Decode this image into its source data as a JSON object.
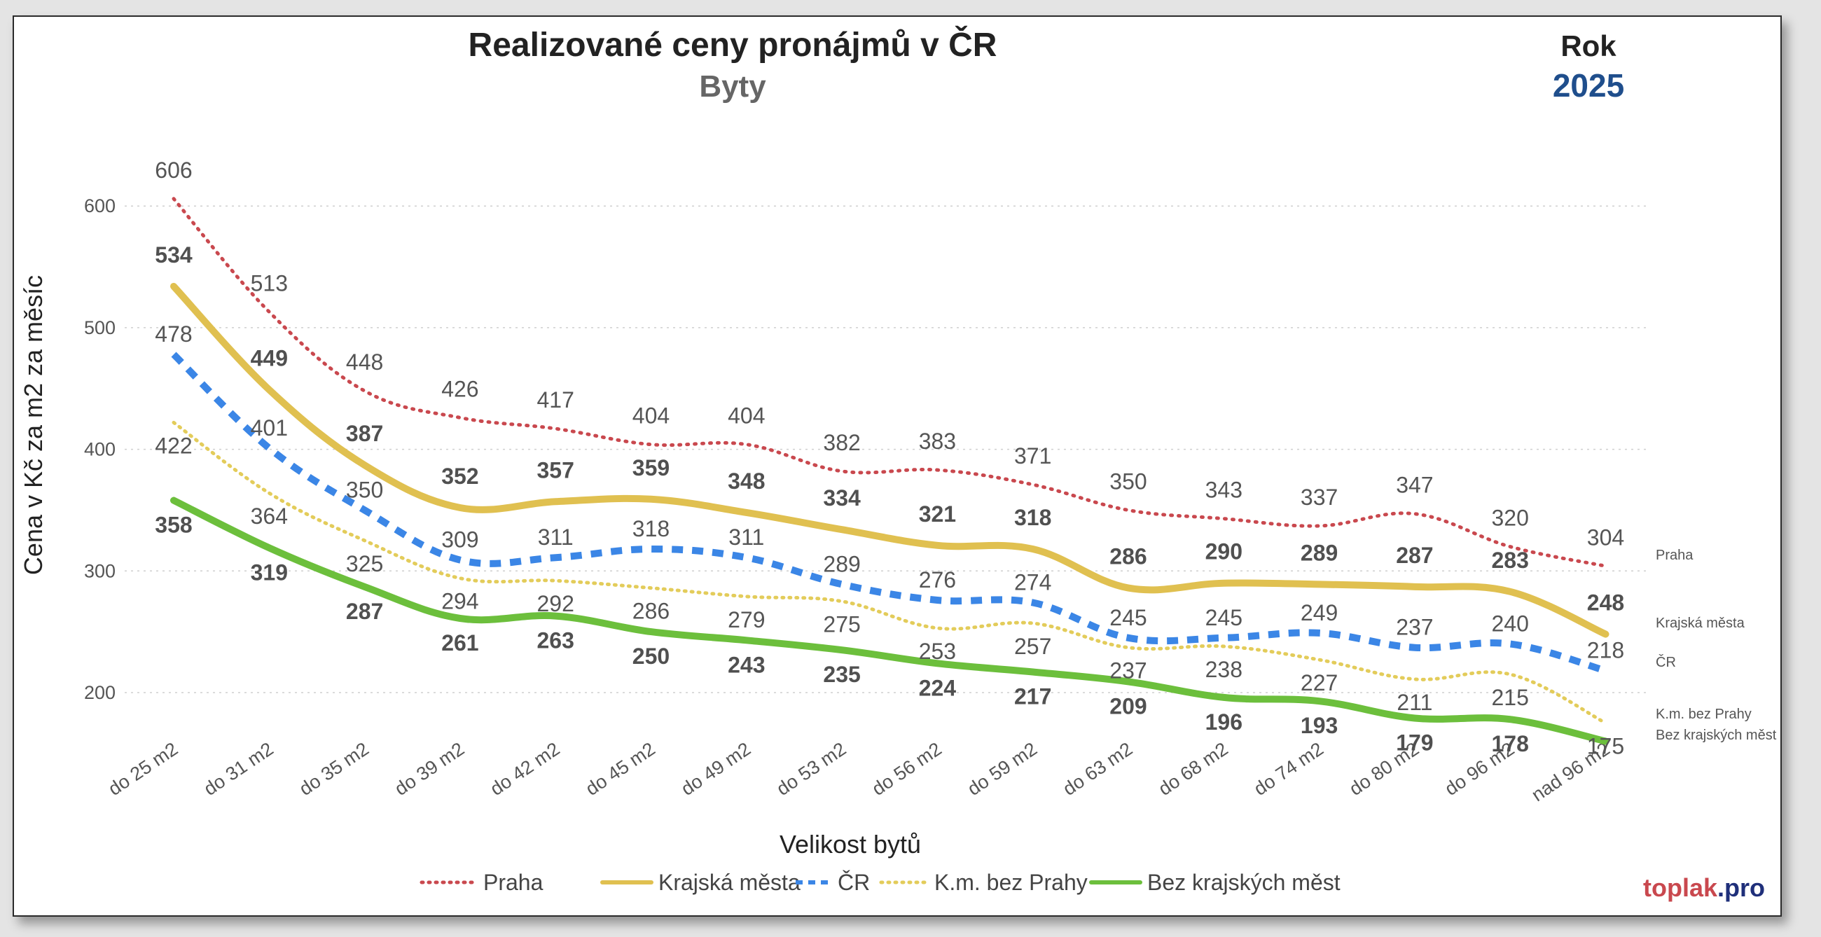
{
  "chart_data": {
    "type": "line",
    "title": "Realizované ceny pronájmů v ČR",
    "subtitle": "Byty",
    "year_label": "Rok",
    "year_value": "2025",
    "xlabel": "Velikost bytů",
    "ylabel": "Cena v Kč za m2 za měsíc",
    "ylim": [
      150,
      650
    ],
    "yticks": [
      200,
      300,
      400,
      500,
      600
    ],
    "grid": true,
    "legend": "bottom",
    "categories": [
      "do 25 m2",
      "do 31 m2",
      "do 35 m2",
      "do 39 m2",
      "do 42 m2",
      "do 45 m2",
      "do 49 m2",
      "do 53 m2",
      "do 56 m2",
      "do 59 m2",
      "do 63 m2",
      "do 68 m2",
      "do 74 m2",
      "do 80 m2",
      "do 96 m2",
      "nad 96 m2"
    ],
    "series": [
      {
        "name": "Praha",
        "color": "#c9484e",
        "style": "dotted",
        "values": [
          606,
          513,
          448,
          426,
          417,
          404,
          404,
          382,
          383,
          371,
          350,
          343,
          337,
          347,
          320,
          304
        ],
        "labels": [
          "606",
          "513",
          "448",
          "426",
          "417",
          "404",
          "404",
          "382",
          "383",
          "371",
          "350",
          "343",
          "337",
          "347",
          "320",
          "304"
        ],
        "end_label": "Praha"
      },
      {
        "name": "Krajská města",
        "color": "#e0c050",
        "style": "solid",
        "values": [
          534,
          449,
          387,
          352,
          357,
          359,
          348,
          334,
          321,
          318,
          286,
          290,
          289,
          287,
          283,
          248
        ],
        "labels": [
          "534",
          "449",
          "387",
          "352",
          "357",
          "359",
          "348",
          "334",
          "321",
          "318",
          "286",
          "290",
          "289",
          "287",
          "283",
          "248"
        ],
        "end_label": "Krajská města"
      },
      {
        "name": "ČR",
        "color": "#3b86e6",
        "style": "dashed",
        "values": [
          478,
          401,
          350,
          309,
          311,
          318,
          311,
          289,
          276,
          274,
          245,
          245,
          249,
          237,
          240,
          218
        ],
        "labels": [
          "478",
          "401",
          "350",
          "309",
          "311",
          "318",
          "311",
          "289",
          "276",
          "274",
          "245",
          "245",
          "249",
          "237",
          "240",
          "218"
        ],
        "end_label": "ČR"
      },
      {
        "name": "K.m. bez Prahy",
        "color": "#e3cc5a",
        "style": "dotted-thin",
        "values": [
          422,
          364,
          325,
          294,
          292,
          286,
          279,
          275,
          253,
          257,
          237,
          238,
          227,
          211,
          215,
          175
        ],
        "labels": [
          "422",
          "364",
          "325",
          "294",
          "292",
          "286",
          "279",
          "275",
          "253",
          "257",
          "237",
          "238",
          "227",
          "211",
          "215",
          "175"
        ],
        "end_label": "K.m. bez Prahy"
      },
      {
        "name": "Bez krajských měst",
        "color": "#6cbf3c",
        "style": "solid",
        "values": [
          358,
          319,
          287,
          261,
          263,
          250,
          243,
          235,
          224,
          217,
          209,
          196,
          193,
          179,
          178,
          160
        ],
        "labels": [
          "358",
          "319",
          "287",
          "261",
          "263",
          "250",
          "243",
          "235",
          "224",
          "217",
          "209",
          "196",
          "193",
          "179",
          "178",
          ""
        ],
        "end_label": "Bez krajských měst"
      }
    ]
  },
  "brand": {
    "part1": "toplak",
    "part2": ".pro",
    "color1": "#c9484e",
    "color2": "#1f2f7a"
  }
}
